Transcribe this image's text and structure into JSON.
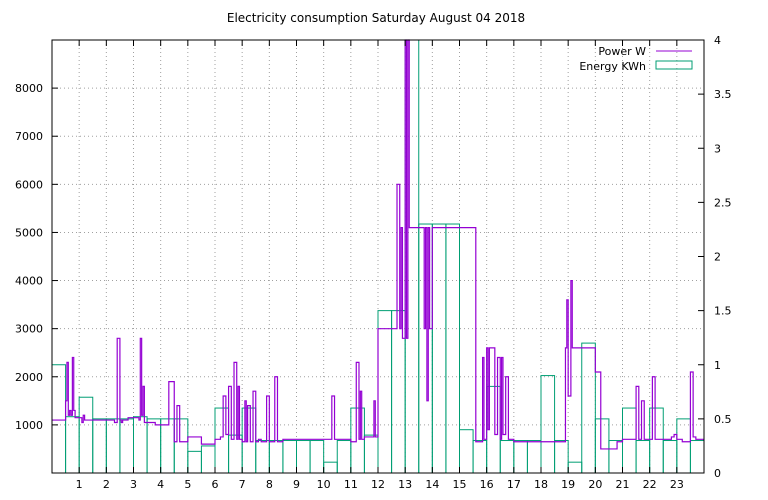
{
  "chart_data": {
    "type": "line",
    "title": "Electricity consumption Saturday August 04 2018",
    "xlabel": "",
    "ylabel": "",
    "xlim": [
      0,
      24
    ],
    "ylim_left": [
      0,
      9000
    ],
    "ylim_right": [
      0,
      4
    ],
    "x_ticks": [
      1,
      2,
      3,
      4,
      5,
      6,
      7,
      8,
      9,
      10,
      11,
      12,
      13,
      14,
      15,
      16,
      17,
      18,
      19,
      20,
      21,
      22,
      23
    ],
    "y_ticks_left": [
      1000,
      2000,
      3000,
      4000,
      5000,
      6000,
      7000,
      8000
    ],
    "y_ticks_right": [
      0,
      0.5,
      1,
      1.5,
      2,
      2.5,
      3,
      3.5,
      4
    ],
    "grid": true,
    "legend_position": "top-right",
    "series": [
      {
        "name": "Power W",
        "axis": "left",
        "color": "#9400d3",
        "style": "line",
        "x": [
          0,
          0.3,
          0.5,
          0.55,
          0.6,
          0.65,
          0.7,
          0.75,
          0.8,
          0.85,
          0.9,
          1.1,
          1.15,
          1.2,
          1.25,
          1.3,
          1.6,
          2.3,
          2.4,
          2.5,
          2.55,
          2.6,
          2.8,
          3.2,
          3.25,
          3.3,
          3.35,
          3.4,
          3.8,
          4.2,
          4.3,
          4.5,
          4.6,
          4.7,
          5.0,
          5.5,
          6.0,
          6.2,
          6.3,
          6.4,
          6.5,
          6.6,
          6.7,
          6.8,
          6.85,
          6.9,
          7.0,
          7.1,
          7.15,
          7.2,
          7.3,
          7.4,
          7.5,
          7.6,
          7.7,
          7.9,
          8.0,
          8.2,
          8.3,
          8.5,
          9.0,
          9.5,
          10.0,
          10.2,
          10.3,
          10.4,
          10.5,
          11.0,
          11.2,
          11.3,
          11.35,
          11.4,
          11.5,
          11.8,
          11.85,
          11.9,
          12.0,
          12.5,
          12.7,
          12.8,
          12.85,
          12.9,
          13.0,
          13.05,
          13.1,
          13.15,
          13.2,
          13.4,
          13.7,
          13.75,
          13.8,
          13.85,
          13.9,
          14.0,
          14.5,
          15.0,
          15.5,
          15.6,
          15.8,
          15.85,
          15.9,
          16.0,
          16.05,
          16.1,
          16.3,
          16.4,
          16.5,
          16.55,
          16.6,
          16.7,
          16.8,
          17.0,
          17.5,
          18.0,
          18.5,
          18.9,
          18.95,
          19.0,
          19.1,
          19.15,
          19.2,
          19.5,
          19.9,
          20.0,
          20.2,
          20.5,
          20.8,
          21.0,
          21.2,
          21.5,
          21.6,
          21.7,
          21.8,
          22.0,
          22.1,
          22.2,
          22.5,
          22.8,
          22.9,
          23.0,
          23.1,
          23.2,
          23.5,
          23.6,
          23.7,
          24.0
        ],
        "values": [
          1100,
          1100,
          1500,
          2300,
          1200,
          1300,
          1200,
          2400,
          1300,
          1150,
          1150,
          1050,
          1200,
          1100,
          1100,
          1100,
          1100,
          1050,
          2800,
          1100,
          1050,
          1100,
          1150,
          1100,
          2800,
          1200,
          1800,
          1050,
          1000,
          1000,
          1900,
          650,
          1400,
          650,
          750,
          600,
          700,
          750,
          1600,
          800,
          1800,
          700,
          2300,
          700,
          1800,
          700,
          650,
          1500,
          650,
          1400,
          650,
          1700,
          650,
          700,
          650,
          1600,
          650,
          2000,
          650,
          700,
          700,
          700,
          700,
          700,
          1600,
          700,
          700,
          650,
          2300,
          700,
          1700,
          700,
          750,
          750,
          1500,
          750,
          3000,
          3000,
          6000,
          3000,
          5100,
          2800,
          9000,
          2800,
          9000,
          5100,
          5100,
          5100,
          3000,
          5100,
          1500,
          5100,
          3000,
          5100,
          5100,
          5100,
          5100,
          650,
          650,
          2400,
          700,
          2600,
          900,
          2600,
          800,
          2400,
          700,
          2400,
          800,
          2000,
          700,
          650,
          650,
          650,
          650,
          2600,
          3600,
          1600,
          4000,
          2600,
          2600,
          2600,
          2600,
          2100,
          500,
          500,
          650,
          700,
          700,
          1800,
          700,
          1500,
          700,
          700,
          2000,
          700,
          700,
          750,
          800,
          700,
          700,
          650,
          2100,
          750,
          700,
          700
        ]
      },
      {
        "name": "Energy KWh",
        "axis": "right",
        "color": "#009e73",
        "style": "steps",
        "x": [
          0,
          0.5,
          1,
          1.5,
          2,
          2.5,
          3,
          3.5,
          4,
          4.5,
          5,
          5.5,
          6,
          6.5,
          7,
          7.5,
          8,
          8.5,
          9,
          9.5,
          10,
          10.5,
          11,
          11.5,
          12,
          12.5,
          13,
          13.5,
          14,
          14.5,
          15,
          15.5,
          16,
          16.5,
          17,
          17.5,
          18,
          18.5,
          19,
          19.5,
          20,
          20.5,
          21,
          21.5,
          22,
          22.5,
          23,
          23.5
        ],
        "values": [
          1.0,
          0.52,
          0.7,
          0.5,
          0.5,
          0.5,
          0.52,
          0.5,
          0.5,
          0.5,
          0.2,
          0.25,
          0.6,
          0.35,
          0.6,
          0.3,
          0.3,
          0.3,
          0.3,
          0.3,
          0.1,
          0.3,
          0.6,
          0.35,
          1.5,
          1.5,
          4.0,
          2.3,
          2.3,
          2.3,
          0.4,
          0.3,
          0.8,
          0.3,
          0.3,
          0.3,
          0.9,
          0.3,
          0.1,
          1.2,
          0.5,
          0.3,
          0.6,
          0.3,
          0.6,
          0.3,
          0.5,
          0.3
        ]
      }
    ]
  }
}
